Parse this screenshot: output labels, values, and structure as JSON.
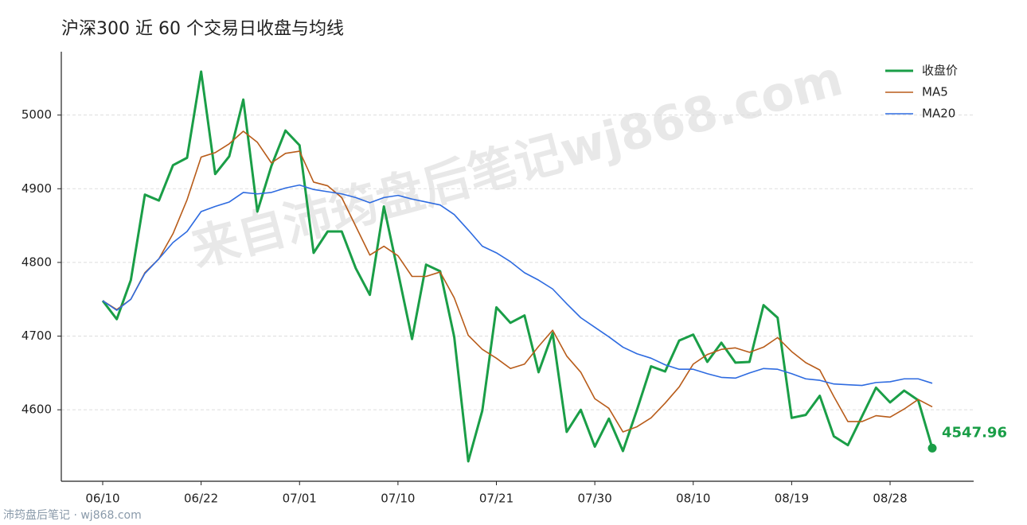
{
  "chart_data": {
    "type": "line",
    "title": "沪深300 近 60 个交易日收盘与均线",
    "watermark": "来自沛筠盘后笔记wj868.com",
    "source": "沛筠盘后笔记 · wj868.com",
    "categories": [
      "06/10",
      null,
      null,
      null,
      null,
      null,
      null,
      "06/22",
      null,
      null,
      null,
      null,
      null,
      null,
      "07/01",
      null,
      null,
      null,
      null,
      null,
      null,
      "07/10",
      null,
      null,
      null,
      null,
      null,
      null,
      "07/21",
      null,
      null,
      null,
      null,
      null,
      null,
      "07/30",
      null,
      null,
      null,
      null,
      null,
      null,
      "08/10",
      null,
      null,
      null,
      null,
      null,
      null,
      "08/19",
      null,
      null,
      null,
      null,
      null,
      null,
      "08/28",
      null,
      null,
      null
    ],
    "series": [
      {
        "name": "收盘价",
        "color": "#1a9e47",
        "width": 3,
        "values": [
          4748,
          4723,
          4776,
          4892,
          4884,
          4932,
          4942,
          5059,
          4920,
          4944,
          5021,
          4869,
          4931,
          4979,
          4959,
          4813,
          4842,
          4842,
          4792,
          4756,
          4876,
          4787,
          4696,
          4797,
          4788,
          4699,
          4530,
          4599,
          4739,
          4718,
          4728,
          4651,
          4704,
          4570,
          4600,
          4550,
          4588,
          4544,
          4600,
          4659,
          4652,
          4694,
          4702,
          4665,
          4691,
          4664,
          4665,
          4742,
          4725,
          4589,
          4593,
          4619,
          4564,
          4552,
          4591,
          4630,
          4610,
          4626,
          4613,
          4547.96
        ]
      },
      {
        "name": "MA5",
        "color": "#b85c1a",
        "width": 1.6,
        "values": [
          4748,
          4736,
          4750,
          4786,
          4805,
          4839,
          4885,
          4943,
          4949,
          4961,
          4978,
          4963,
          4935,
          4948,
          4951,
          4909,
          4904,
          4888,
          4849,
          4810,
          4822,
          4809,
          4781,
          4781,
          4787,
          4752,
          4701,
          4682,
          4670,
          4656,
          4662,
          4686,
          4708,
          4673,
          4651,
          4615,
          4602,
          4570,
          4577,
          4589,
          4609,
          4631,
          4662,
          4675,
          4682,
          4684,
          4678,
          4685,
          4698,
          4679,
          4664,
          4654,
          4618,
          4584,
          4584,
          4592,
          4590,
          4601,
          4614,
          4604
        ]
      },
      {
        "name": "MA20",
        "color": "#2e6be0",
        "width": 1.6,
        "values": [
          4748,
          4735,
          4750,
          4785,
          4805,
          4827,
          4842,
          4869,
          4876,
          4882,
          4895,
          4893,
          4895,
          4901,
          4905,
          4899,
          4896,
          4893,
          4888,
          4881,
          4888,
          4891,
          4886,
          4882,
          4878,
          4865,
          4844,
          4822,
          4813,
          4801,
          4786,
          4776,
          4764,
          4744,
          4725,
          4712,
          4699,
          4685,
          4676,
          4670,
          4661,
          4655,
          4655,
          4649,
          4644,
          4643,
          4650,
          4656,
          4655,
          4649,
          4642,
          4640,
          4635,
          4634,
          4633,
          4637,
          4638,
          4642,
          4642,
          4636
        ]
      }
    ],
    "ylim": [
      4503,
      5086
    ],
    "yticks": [
      4600,
      4700,
      4800,
      4900,
      5000
    ],
    "grid": true,
    "legend": "upper-right"
  }
}
